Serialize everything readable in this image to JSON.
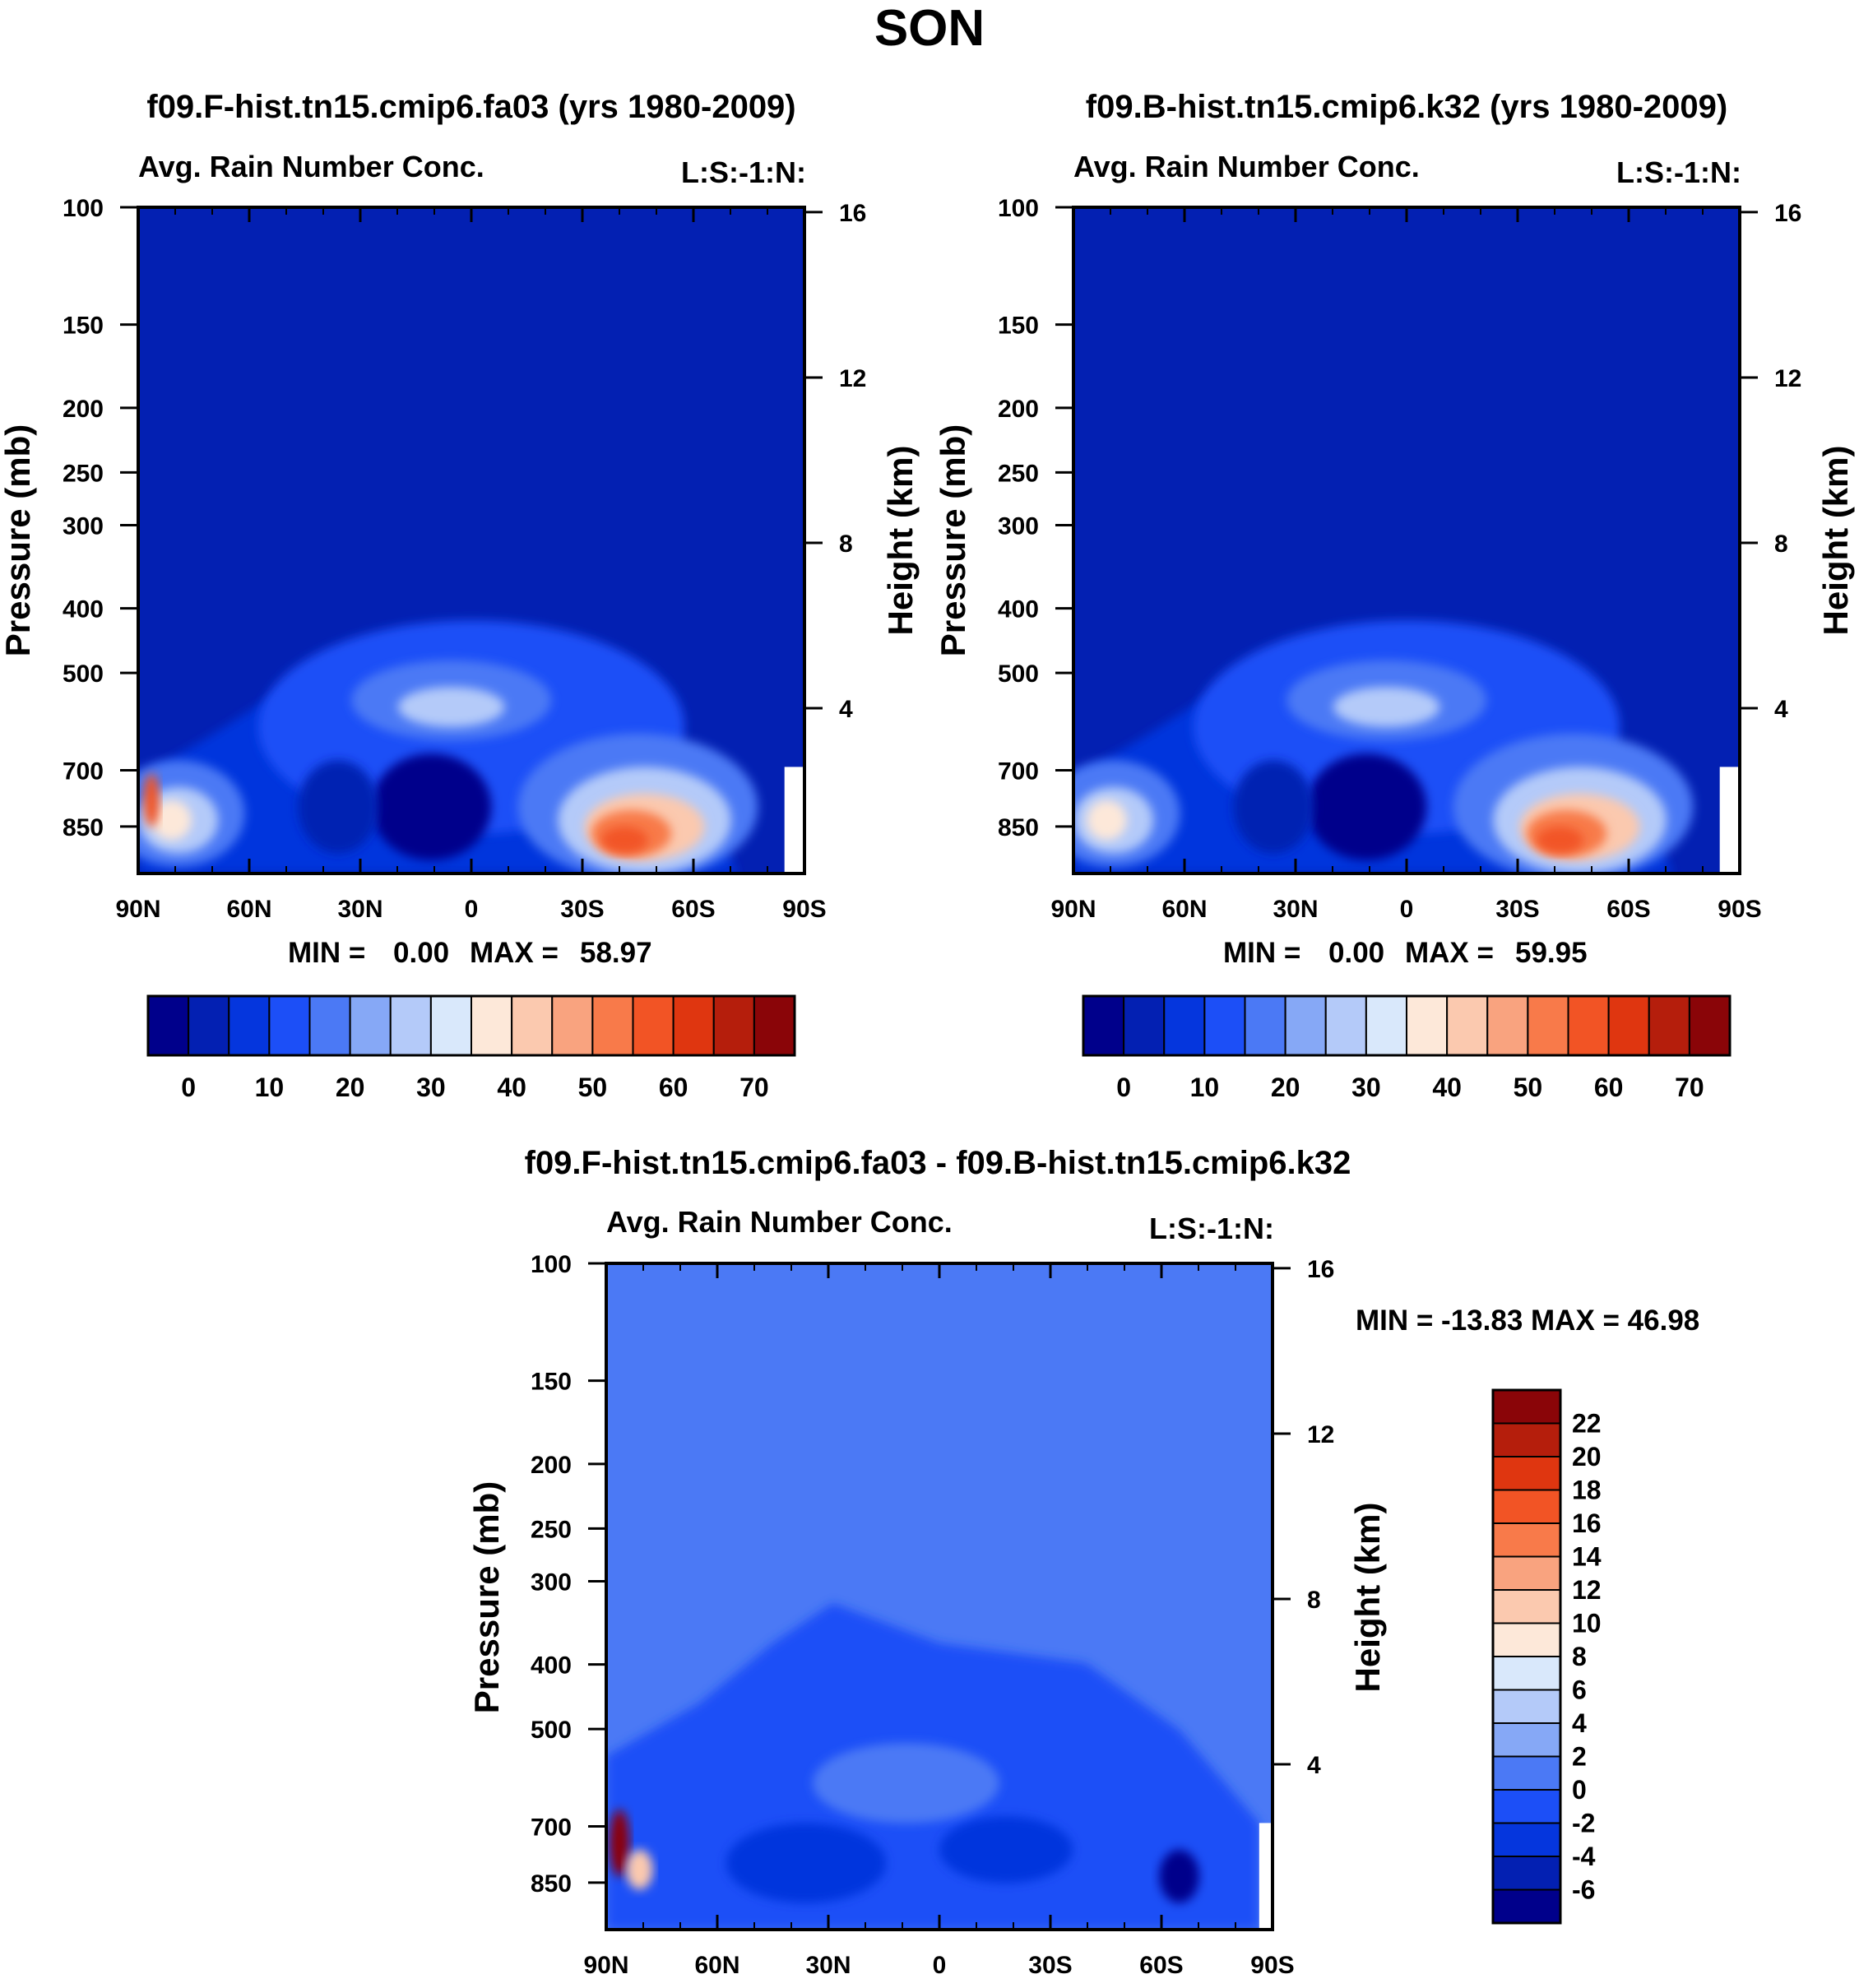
{
  "title": "SON",
  "panels": [
    {
      "title": "f09.F-hist.tn15.cmip6.fa03 (yrs 1980-2009)",
      "left_label": "Avg. Rain Number Conc.",
      "right_label": "L:S:-1:N:",
      "min_label": "MIN =",
      "min_value": "0.00",
      "max_label": "MAX =",
      "max_value": "58.97"
    },
    {
      "title": "f09.B-hist.tn15.cmip6.k32 (yrs 1980-2009)",
      "left_label": "Avg. Rain Number Conc.",
      "right_label": "L:S:-1:N:",
      "min_label": "MIN =",
      "min_value": "0.00",
      "max_label": "MAX =",
      "max_value": "59.95"
    },
    {
      "title": "f09.F-hist.tn15.cmip6.fa03 - f09.B-hist.tn15.cmip6.k32",
      "left_label": "Avg. Rain Number Conc.",
      "right_label": "L:S:-1:N:",
      "minmax_text": "MIN = -13.83  MAX =  46.98"
    }
  ],
  "chart_data": [
    {
      "type": "heatmap",
      "title": "f09.F-hist.tn15.cmip6.fa03 (yrs 1980-2009)",
      "subtitle": "Avg. Rain Number Conc.",
      "xlabel": "",
      "ylabel": "Pressure (mb)",
      "ylabel_right": "Height (km)",
      "x_ticks": [
        "90N",
        "60N",
        "30N",
        "0",
        "30S",
        "60S",
        "90S"
      ],
      "y_ticks": [
        100,
        150,
        200,
        250,
        300,
        400,
        500,
        700,
        850
      ],
      "y_ticks_right": [
        16,
        12,
        8,
        4
      ],
      "ylim": [
        1000,
        100
      ],
      "min": 0.0,
      "max": 58.97,
      "colorbar_labels": [
        "0",
        "10",
        "20",
        "30",
        "40",
        "50",
        "60",
        "70"
      ],
      "colors": [
        "#00008b",
        "#0320b2",
        "#0536dd",
        "#1c4ff7",
        "#4b79f5",
        "#86a8f6",
        "#b4caf9",
        "#d9e8fb",
        "#fde8d9",
        "#fbc9af",
        "#f9a37f",
        "#f87a4a",
        "#f25425",
        "#df3610",
        "#b51e0c",
        "#8a0508"
      ]
    },
    {
      "type": "heatmap",
      "title": "f09.B-hist.tn15.cmip6.k32 (yrs 1980-2009)",
      "subtitle": "Avg. Rain Number Conc.",
      "xlabel": "",
      "ylabel": "Pressure (mb)",
      "ylabel_right": "Height (km)",
      "x_ticks": [
        "90N",
        "60N",
        "30N",
        "0",
        "30S",
        "60S",
        "90S"
      ],
      "y_ticks": [
        100,
        150,
        200,
        250,
        300,
        400,
        500,
        700,
        850
      ],
      "y_ticks_right": [
        16,
        12,
        8,
        4
      ],
      "ylim": [
        1000,
        100
      ],
      "min": 0.0,
      "max": 59.95,
      "colorbar_labels": [
        "0",
        "10",
        "20",
        "30",
        "40",
        "50",
        "60",
        "70"
      ],
      "colors": [
        "#00008b",
        "#0320b2",
        "#0536dd",
        "#1c4ff7",
        "#4b79f5",
        "#86a8f6",
        "#b4caf9",
        "#d9e8fb",
        "#fde8d9",
        "#fbc9af",
        "#f9a37f",
        "#f87a4a",
        "#f25425",
        "#df3610",
        "#b51e0c",
        "#8a0508"
      ]
    },
    {
      "type": "heatmap",
      "title": "f09.F-hist.tn15.cmip6.fa03 - f09.B-hist.tn15.cmip6.k32",
      "subtitle": "Avg. Rain Number Conc.",
      "xlabel": "",
      "ylabel": "Pressure (mb)",
      "ylabel_right": "Height (km)",
      "x_ticks": [
        "90N",
        "60N",
        "30N",
        "0",
        "30S",
        "60S",
        "90S"
      ],
      "y_ticks": [
        100,
        150,
        200,
        250,
        300,
        400,
        500,
        700,
        850
      ],
      "y_ticks_right": [
        16,
        12,
        8,
        4
      ],
      "ylim": [
        1000,
        100
      ],
      "min": -13.83,
      "max": 46.98,
      "colorbar_labels": [
        "22",
        "20",
        "18",
        "16",
        "14",
        "12",
        "10",
        "8",
        "6",
        "4",
        "2",
        "0",
        "-2",
        "-4",
        "-6"
      ],
      "colors": [
        "#8a0508",
        "#b51e0c",
        "#df3610",
        "#f25425",
        "#f87a4a",
        "#f9a37f",
        "#fbc9af",
        "#fde8d9",
        "#d9e8fb",
        "#b4caf9",
        "#86a8f6",
        "#4b79f5",
        "#1c4ff7",
        "#0536dd",
        "#0320b2",
        "#00008b"
      ]
    }
  ]
}
